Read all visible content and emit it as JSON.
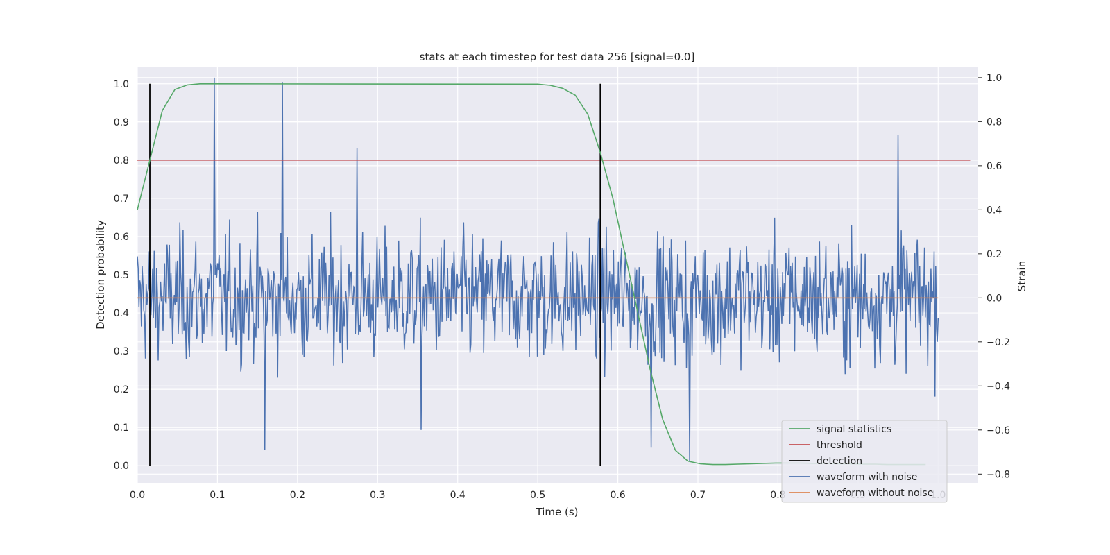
{
  "chart_data": {
    "type": "line",
    "title": "stats at each timestep for test data 256 [signal=0.0]",
    "xlabel": "Time (s)",
    "ylabel": "Detection probability",
    "y2label": "Strain",
    "xlim": [
      0.0,
      1.05
    ],
    "ylim": [
      -0.045,
      1.045
    ],
    "y2lim": [
      -0.84,
      1.05
    ],
    "xticks": [
      "0.0",
      "0.1",
      "0.2",
      "0.3",
      "0.4",
      "0.5",
      "0.6",
      "0.7",
      "0.8",
      "0.9",
      "1.0"
    ],
    "yticks": [
      "0.0",
      "0.1",
      "0.2",
      "0.3",
      "0.4",
      "0.5",
      "0.6",
      "0.7",
      "0.8",
      "0.9",
      "1.0"
    ],
    "y2ticks": [
      "−0.8",
      "−0.6",
      "−0.4",
      "−0.2",
      "0.0",
      "0.2",
      "0.4",
      "0.6",
      "0.8",
      "1.0"
    ],
    "grid": true,
    "legend_position": "lower-right",
    "colors": {
      "background": "#eaeaf2",
      "grid": "#ffffff",
      "signal": "#55a868",
      "threshold": "#c44e52",
      "detection": "#000000",
      "noise": "#4c72b0",
      "clean": "#dd8452"
    },
    "series": [
      {
        "name": "signal statistics",
        "axis": "left",
        "x": [
          0.0,
          0.0156,
          0.0312,
          0.0469,
          0.0625,
          0.0781,
          0.0938,
          0.5,
          0.5156,
          0.5312,
          0.5469,
          0.5625,
          0.5781,
          0.5938,
          0.6094,
          0.625,
          0.6406,
          0.6562,
          0.6719,
          0.6875,
          0.7031,
          0.7188,
          0.7344,
          0.75,
          0.7656,
          0.7812,
          0.7969,
          0.8125,
          0.8281,
          0.8438,
          0.8594,
          0.875,
          0.8906,
          0.9062,
          0.9219,
          0.9375,
          0.9531,
          0.9688,
          0.9844
        ],
        "values": [
          0.67,
          0.8,
          0.93,
          0.985,
          0.997,
          1.0,
          1.0,
          0.999,
          0.996,
          0.988,
          0.97,
          0.92,
          0.82,
          0.7,
          0.55,
          0.4,
          0.25,
          0.12,
          0.04,
          0.012,
          0.005,
          0.003,
          0.003,
          0.004,
          0.005,
          0.006,
          0.007,
          0.007,
          0.007,
          0.006,
          0.006,
          0.005,
          0.005,
          0.004,
          0.004,
          0.003,
          0.003,
          0.003,
          0.003
        ]
      },
      {
        "name": "threshold",
        "axis": "left",
        "x": [
          0.0,
          1.04
        ],
        "values": [
          0.8,
          0.8
        ]
      },
      {
        "name": "detection",
        "axis": "left",
        "x": [
          0.0156,
          0.5781
        ],
        "ymin": 0.0,
        "ymax": 1.0
      },
      {
        "name": "waveform with noise",
        "axis": "right",
        "x_start": 0.0,
        "x_end": 1.0,
        "sample_count": 1000,
        "noise_sigma": 0.2,
        "approx_range": [
          -0.77,
          0.98
        ],
        "notable_peaks": [
          {
            "x": 0.096,
            "y": 1.0
          },
          {
            "x": 0.181,
            "y": 0.98
          },
          {
            "x": 0.274,
            "y": 0.68
          },
          {
            "x": 0.159,
            "y": -0.69
          },
          {
            "x": 0.354,
            "y": -0.6
          },
          {
            "x": 0.642,
            "y": -0.68
          },
          {
            "x": 0.69,
            "y": -0.74
          },
          {
            "x": 0.95,
            "y": 0.74
          }
        ]
      },
      {
        "name": "waveform without noise",
        "axis": "right",
        "x": [
          0.0,
          1.0
        ],
        "values": [
          0.0,
          0.0
        ]
      }
    ]
  }
}
